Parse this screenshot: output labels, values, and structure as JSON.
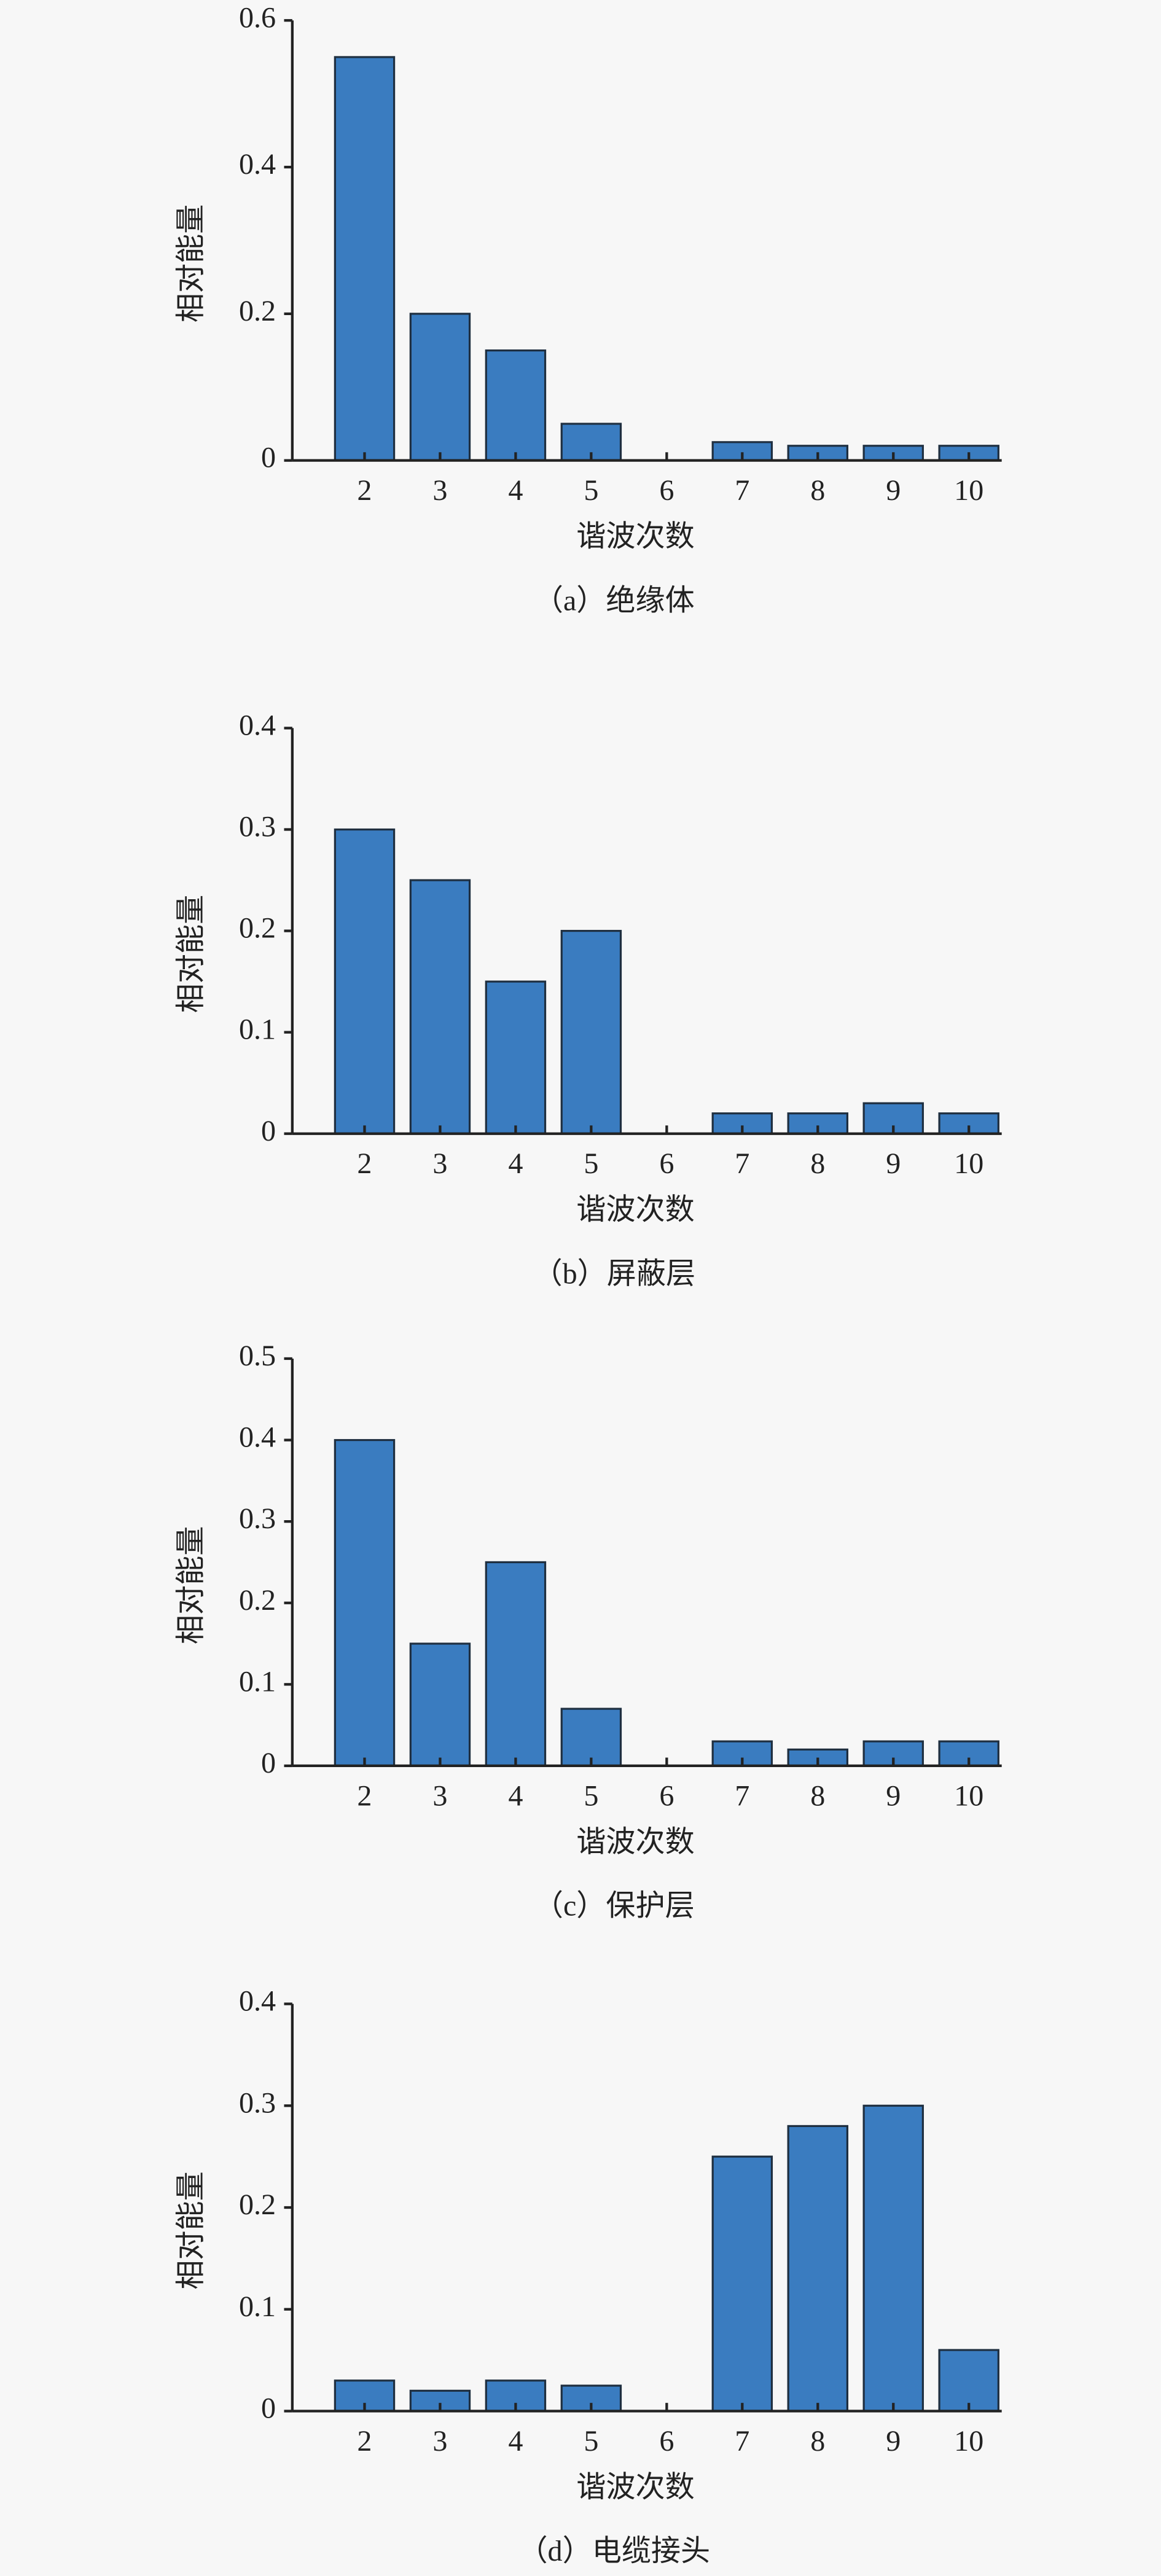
{
  "chart_data": [
    {
      "type": "bar",
      "caption": "（a）绝缘体",
      "xlabel": "谐波次数",
      "ylabel": "相对能量",
      "categories": [
        "2",
        "3",
        "4",
        "5",
        "6",
        "7",
        "8",
        "9",
        "10"
      ],
      "values": [
        0.55,
        0.2,
        0.15,
        0.05,
        0,
        0.025,
        0.02,
        0.02,
        0.02
      ],
      "color": "#3a7cc0",
      "ylim": [
        0,
        0.6
      ],
      "yticks": [
        0,
        0.2,
        0.4,
        0.6
      ]
    },
    {
      "type": "bar",
      "caption": "（b）屏蔽层",
      "xlabel": "谐波次数",
      "ylabel": "相对能量",
      "categories": [
        "2",
        "3",
        "4",
        "5",
        "6",
        "7",
        "8",
        "9",
        "10"
      ],
      "values": [
        0.3,
        0.25,
        0.15,
        0.2,
        0,
        0.02,
        0.02,
        0.03,
        0.02
      ],
      "color": "#3a7cc0",
      "ylim": [
        0,
        0.4
      ],
      "yticks": [
        0,
        0.1,
        0.2,
        0.3,
        0.4
      ]
    },
    {
      "type": "bar",
      "caption": "（c）保护层",
      "xlabel": "谐波次数",
      "ylabel": "相对能量",
      "categories": [
        "2",
        "3",
        "4",
        "5",
        "6",
        "7",
        "8",
        "9",
        "10"
      ],
      "values": [
        0.4,
        0.15,
        0.25,
        0.07,
        0,
        0.03,
        0.02,
        0.03,
        0.03
      ],
      "color": "#3a7cc0",
      "ylim": [
        0,
        0.5
      ],
      "yticks": [
        0,
        0.1,
        0.2,
        0.3,
        0.4,
        0.5
      ]
    },
    {
      "type": "bar",
      "caption": "（d）电缆接头",
      "xlabel": "谐波次数",
      "ylabel": "相对能量",
      "categories": [
        "2",
        "3",
        "4",
        "5",
        "6",
        "7",
        "8",
        "9",
        "10"
      ],
      "values": [
        0.03,
        0.02,
        0.03,
        0.025,
        0,
        0.25,
        0.28,
        0.3,
        0.06
      ],
      "color": "#3a7cc0",
      "ylim": [
        0,
        0.4
      ],
      "yticks": [
        0,
        0.1,
        0.2,
        0.3,
        0.4
      ]
    }
  ]
}
